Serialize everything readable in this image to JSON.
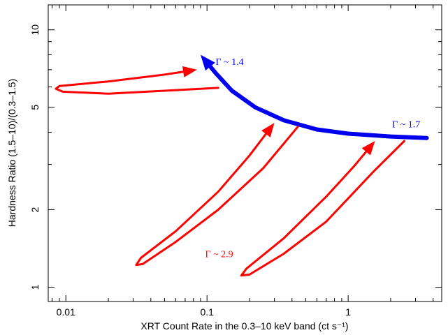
{
  "chart_data": {
    "type": "line",
    "xscale": "log",
    "yscale": "log",
    "xlim": [
      0.0075,
      4.6
    ],
    "ylim": [
      0.88,
      12.5
    ],
    "grid": false,
    "xlabel": "XRT Count Rate in the 0.3–10 keV band (ct s⁻¹)",
    "ylabel": "Hardness Ratio (1.5–10)/(0.3–1.5)",
    "x_ticks": [
      {
        "value": 0.01,
        "label": "0.01"
      },
      {
        "value": 0.1,
        "label": "0.1"
      },
      {
        "value": 1,
        "label": "1"
      }
    ],
    "y_ticks": [
      {
        "value": 1,
        "label": "1"
      },
      {
        "value": 2,
        "label": "2"
      },
      {
        "value": 5,
        "label": "5"
      },
      {
        "value": 10,
        "label": "10"
      }
    ],
    "series": [
      {
        "color": "#0000ee",
        "points": [
          [
            3.6,
            3.8
          ],
          [
            2.0,
            3.85
          ],
          [
            1.0,
            3.95
          ],
          [
            0.6,
            4.1
          ],
          [
            0.35,
            4.45
          ],
          [
            0.22,
            5.0
          ],
          [
            0.15,
            5.8
          ],
          [
            0.115,
            6.8
          ],
          [
            0.09,
            8.0
          ]
        ]
      },
      {
        "color": "#ff0000",
        "points": [
          [
            0.12,
            5.95
          ],
          [
            0.05,
            5.8
          ],
          [
            0.02,
            5.65
          ],
          [
            0.0095,
            5.75
          ],
          [
            0.0085,
            5.9
          ],
          [
            0.009,
            6.05
          ],
          [
            0.02,
            6.3
          ],
          [
            0.05,
            6.7
          ],
          [
            0.085,
            7.0
          ]
        ]
      },
      {
        "color": "#ff0000",
        "points": [
          [
            0.44,
            4.2
          ],
          [
            0.25,
            2.9
          ],
          [
            0.12,
            2.0
          ],
          [
            0.06,
            1.5
          ],
          [
            0.035,
            1.23
          ],
          [
            0.0315,
            1.22
          ],
          [
            0.034,
            1.3
          ],
          [
            0.06,
            1.65
          ],
          [
            0.12,
            2.35
          ],
          [
            0.2,
            3.25
          ],
          [
            0.3,
            4.35
          ]
        ]
      },
      {
        "color": "#ff0000",
        "points": [
          [
            2.5,
            3.7
          ],
          [
            1.5,
            2.8
          ],
          [
            0.7,
            1.8
          ],
          [
            0.35,
            1.35
          ],
          [
            0.2,
            1.12
          ],
          [
            0.175,
            1.11
          ],
          [
            0.19,
            1.18
          ],
          [
            0.35,
            1.55
          ],
          [
            0.7,
            2.25
          ],
          [
            1.1,
            2.95
          ],
          [
            1.55,
            3.7
          ]
        ]
      }
    ],
    "annotations": [
      {
        "text": "Γ ~ 1.4",
        "x": 0.115,
        "y": 7.3,
        "color": "#0000ee"
      },
      {
        "text": "Γ ~ 1.7",
        "x": 2.05,
        "y": 4.18,
        "color": "#0000ee"
      },
      {
        "text": "Γ ~ 2.9",
        "x": 0.097,
        "y": 1.31,
        "color": "#ff0000"
      }
    ]
  }
}
